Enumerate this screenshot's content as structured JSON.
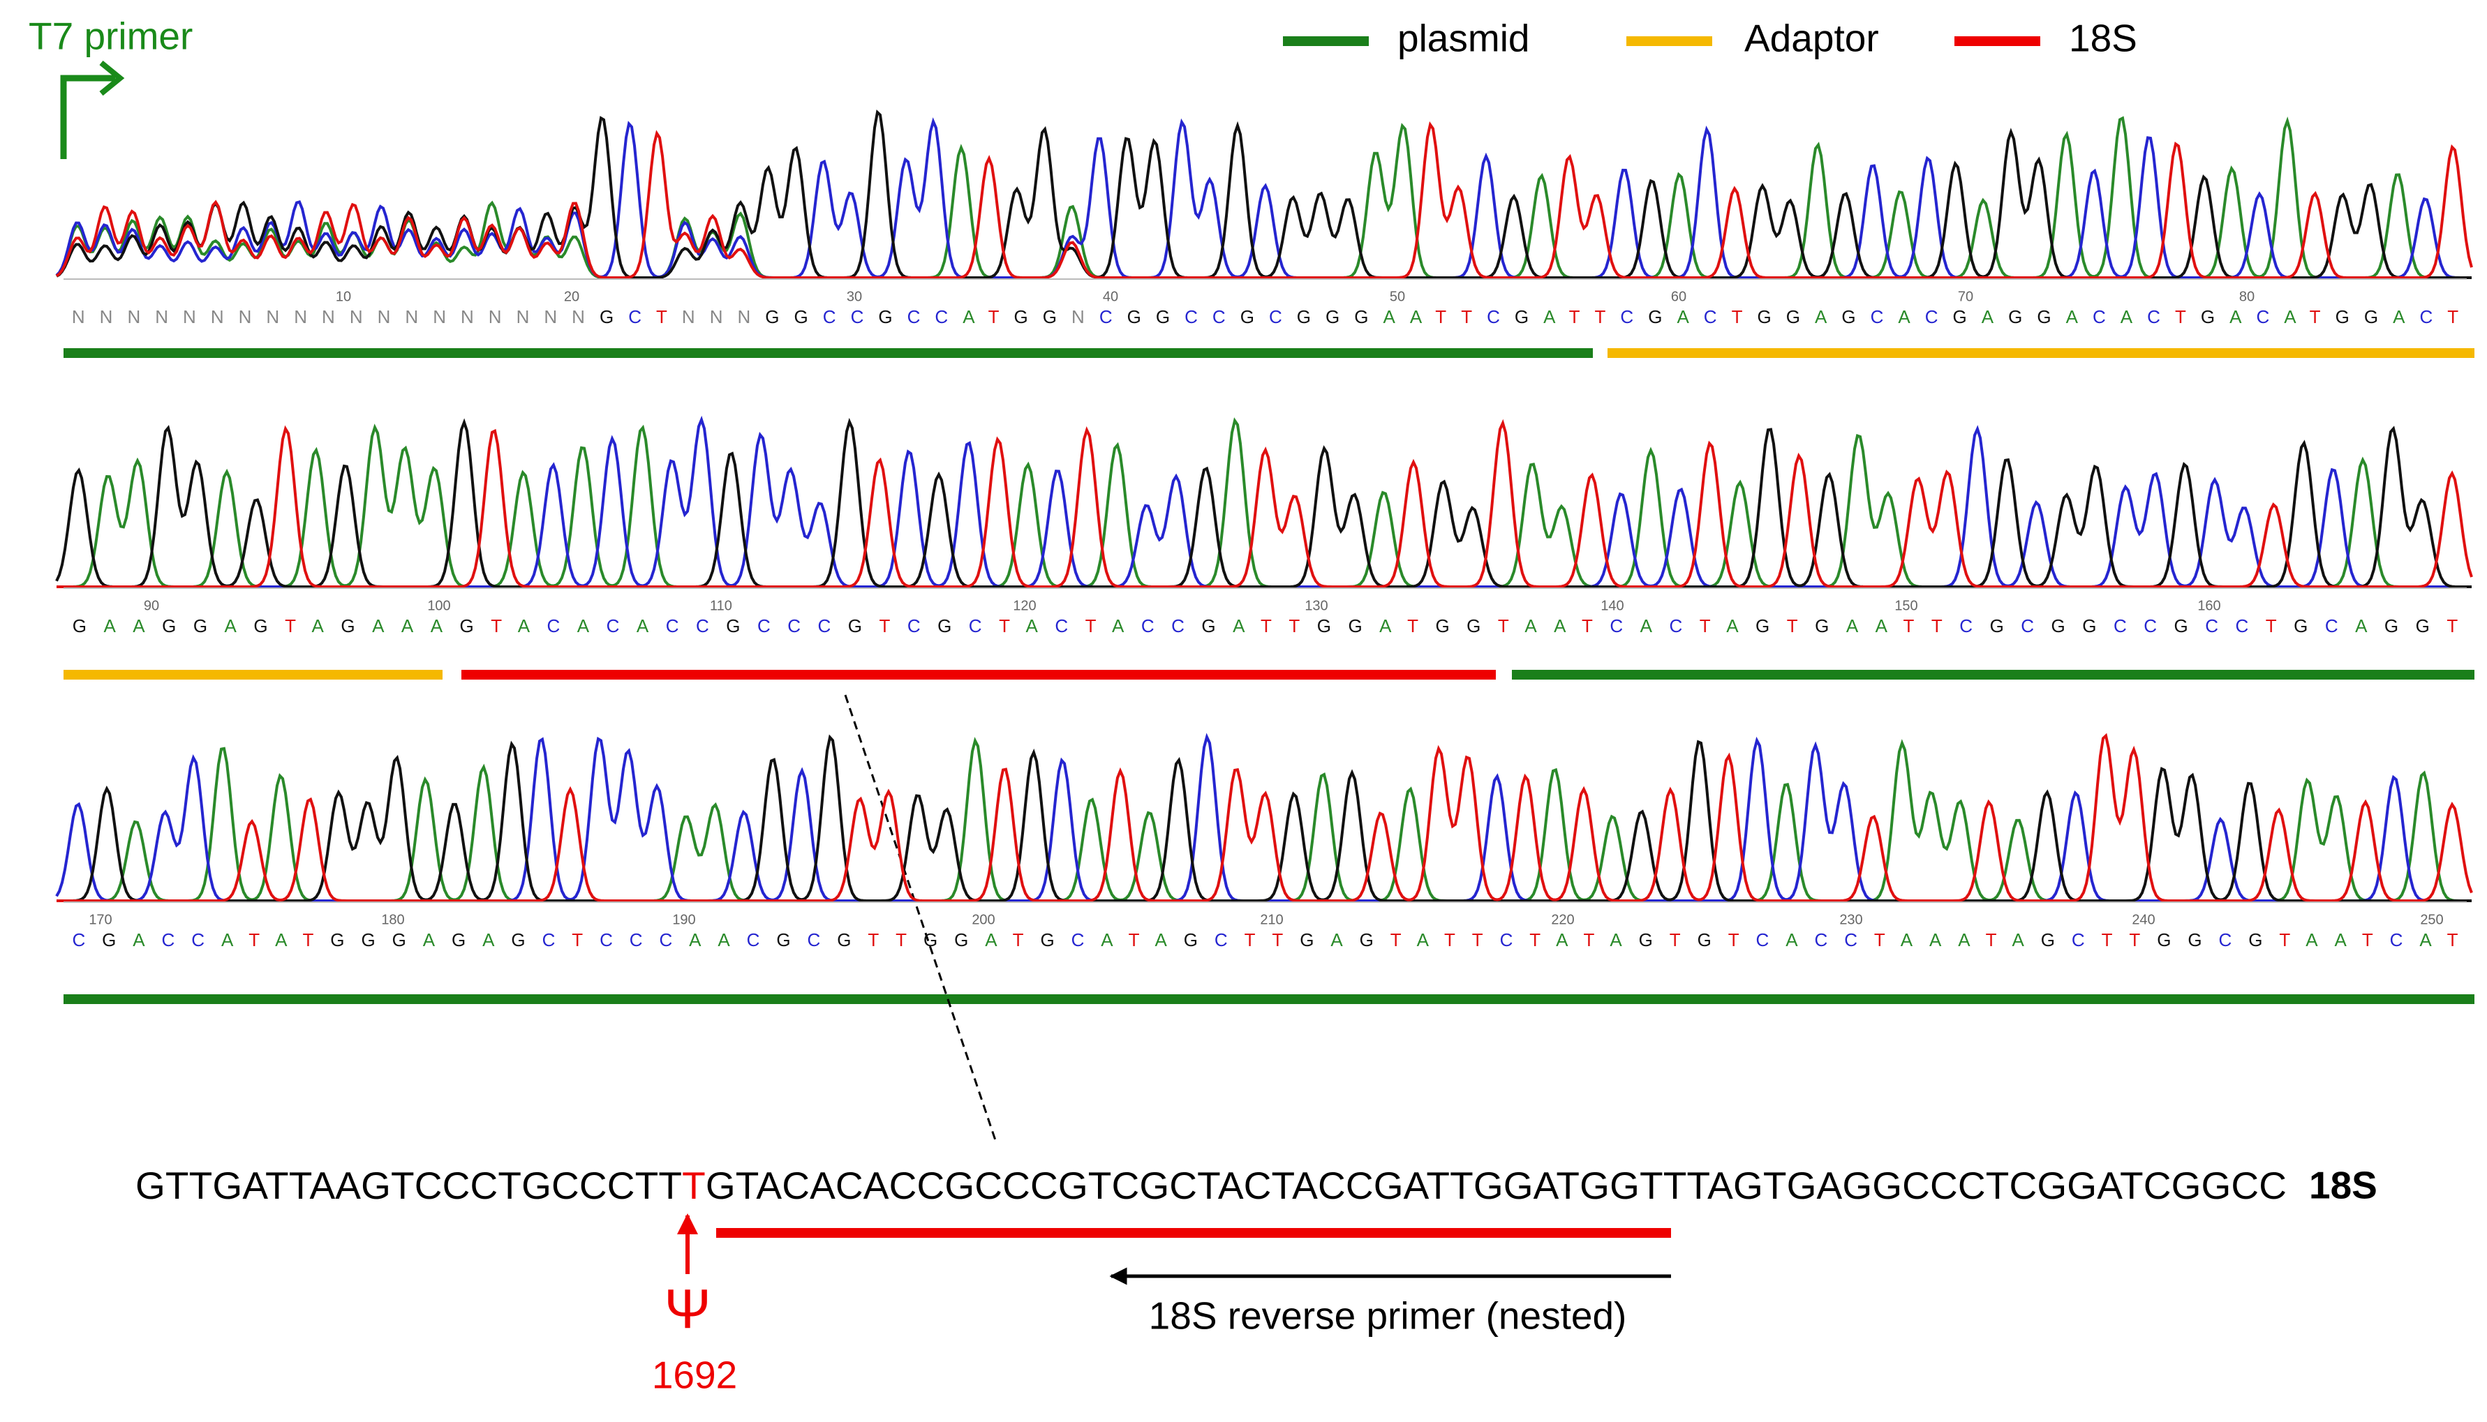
{
  "primer": "T7 primer",
  "legend": [
    "plasmid",
    "Adaptor",
    "18S"
  ],
  "rows": [
    {
      "ticks": [
        10,
        20,
        30,
        40,
        50,
        60,
        70,
        80
      ],
      "bases": "NNNNNNNNNNNNNNNNNNNGCTNNNGGCCGCCATGGNCGGCCGCGGGAATTCGATTCGACTGGAGCACGAGGACACTGACATGGACT"
    },
    {
      "ticks": [
        90,
        100,
        110,
        120,
        130,
        140,
        150,
        160
      ],
      "bases": "GAAGGAGTAGAAAGTACACACCGCCCGTCGCTACTACCGATTGGATGGTAATCACTAGTGAATTCGCGGCCGCCTGCAGGT"
    },
    {
      "ticks": [
        170,
        180,
        190,
        200,
        210,
        220,
        230,
        240,
        250
      ],
      "bases": "CGACCATATGGGAGAGCTCCCAACGCGTTGGATGCATAGCTTGAGTATTCTATAGTGTCACCTAAATAGCTTGGCGTAATCAT"
    }
  ],
  "reference": {
    "before": "GTTGATTAAGTCCCTGCCCTT",
    "site": "T",
    "after": "GTACACACCGCCCGTCGCTACTACCGATTGGATGGTTTAGTGAGGCCCTCGGATCGGCC",
    "label": "18S"
  },
  "reverse_primer": "18S reverse primer (nested)",
  "modification": {
    "symbol": "Ψ",
    "position": "1692"
  }
}
